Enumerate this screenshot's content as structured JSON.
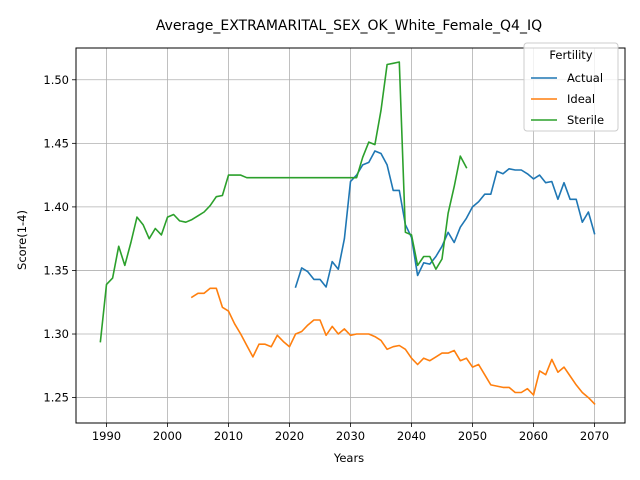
{
  "chart_data": {
    "type": "line",
    "title": "Average_EXTRAMARITAL_SEX_OK_White_Female_Q4_IQ",
    "xlabel": "Years",
    "ylabel": "Score(1-4)",
    "xlim": [
      1985,
      2075
    ],
    "ylim": [
      1.23,
      1.525
    ],
    "grid": true,
    "x_ticks": [
      1990,
      2000,
      2010,
      2020,
      2030,
      2040,
      2050,
      2060,
      2070
    ],
    "y_ticks": [
      1.25,
      1.3,
      1.35,
      1.4,
      1.45,
      1.5
    ],
    "x_tick_labels": [
      "1990",
      "2000",
      "2010",
      "2020",
      "2030",
      "2040",
      "2050",
      "2060",
      "2070"
    ],
    "y_tick_labels": [
      "1.25",
      "1.30",
      "1.35",
      "1.40",
      "1.45",
      "1.50"
    ],
    "legend": {
      "title": "Fertility",
      "position": "top-right"
    },
    "series": [
      {
        "name": "Actual",
        "color": "#1f77b4",
        "x": [
          2021,
          2022,
          2023,
          2024,
          2025,
          2026,
          2027,
          2028,
          2029,
          2030,
          2031,
          2032,
          2033,
          2034,
          2035,
          2036,
          2037,
          2038,
          2039,
          2040,
          2041,
          2042,
          2043,
          2044,
          2045,
          2046,
          2047,
          2048,
          2049,
          2050,
          2051,
          2052,
          2053,
          2054,
          2055,
          2056,
          2057,
          2058,
          2059,
          2060,
          2061,
          2062,
          2063,
          2064,
          2065,
          2066,
          2067,
          2068,
          2069,
          2070
        ],
        "y": [
          1.337,
          1.352,
          1.349,
          1.343,
          1.343,
          1.337,
          1.357,
          1.351,
          1.375,
          1.42,
          1.425,
          1.433,
          1.435,
          1.444,
          1.442,
          1.433,
          1.413,
          1.413,
          1.386,
          1.376,
          1.346,
          1.356,
          1.355,
          1.361,
          1.369,
          1.38,
          1.372,
          1.384,
          1.391,
          1.4,
          1.404,
          1.41,
          1.41,
          1.428,
          1.426,
          1.43,
          1.429,
          1.429,
          1.426,
          1.422,
          1.425,
          1.419,
          1.42,
          1.406,
          1.419,
          1.406,
          1.406,
          1.388,
          1.396,
          1.379
        ]
      },
      {
        "name": "Ideal",
        "color": "#ff7f0e",
        "x": [
          2004,
          2005,
          2006,
          2007,
          2008,
          2009,
          2010,
          2011,
          2012,
          2013,
          2014,
          2015,
          2016,
          2017,
          2018,
          2019,
          2020,
          2021,
          2022,
          2023,
          2024,
          2025,
          2026,
          2027,
          2028,
          2029,
          2030,
          2031,
          2032,
          2033,
          2034,
          2035,
          2036,
          2037,
          2038,
          2039,
          2040,
          2041,
          2042,
          2043,
          2044,
          2045,
          2046,
          2047,
          2048,
          2049,
          2050,
          2051,
          2052,
          2053,
          2054,
          2055,
          2056,
          2057,
          2058,
          2059,
          2060,
          2061,
          2062,
          2063,
          2064,
          2065,
          2066,
          2067,
          2068,
          2069,
          2070
        ],
        "y": [
          1.329,
          1.332,
          1.332,
          1.336,
          1.336,
          1.321,
          1.318,
          1.308,
          1.3,
          1.291,
          1.282,
          1.292,
          1.292,
          1.29,
          1.299,
          1.294,
          1.29,
          1.3,
          1.302,
          1.307,
          1.311,
          1.311,
          1.299,
          1.306,
          1.3,
          1.304,
          1.299,
          1.3,
          1.3,
          1.3,
          1.298,
          1.295,
          1.288,
          1.29,
          1.291,
          1.288,
          1.281,
          1.276,
          1.281,
          1.279,
          1.282,
          1.285,
          1.285,
          1.287,
          1.279,
          1.281,
          1.274,
          1.276,
          1.268,
          1.26,
          1.259,
          1.258,
          1.258,
          1.254,
          1.254,
          1.257,
          1.252,
          1.271,
          1.268,
          1.28,
          1.27,
          1.274,
          1.267,
          1.26,
          1.254,
          1.25,
          1.245
        ]
      },
      {
        "name": "Sterile",
        "color": "#2ca02c",
        "x": [
          1989,
          1990,
          1991,
          1992,
          1993,
          1994,
          1995,
          1996,
          1997,
          1998,
          1999,
          2000,
          2001,
          2002,
          2003,
          2004,
          2005,
          2006,
          2007,
          2008,
          2009,
          2010,
          2011,
          2012,
          2013,
          2014,
          2015,
          2016,
          2017,
          2018,
          2019,
          2020,
          2021,
          2022,
          2023,
          2024,
          2025,
          2026,
          2027,
          2028,
          2029,
          2030,
          2031,
          2032,
          2033,
          2034,
          2035,
          2036,
          2037,
          2038,
          2039,
          2040,
          2041,
          2042,
          2043,
          2044,
          2045,
          2046,
          2047,
          2048,
          2049
        ],
        "y": [
          1.294,
          1.339,
          1.344,
          1.369,
          1.354,
          1.372,
          1.392,
          1.386,
          1.375,
          1.383,
          1.378,
          1.392,
          1.394,
          1.389,
          1.388,
          1.39,
          1.393,
          1.396,
          1.401,
          1.408,
          1.409,
          1.425,
          1.425,
          1.425,
          1.423,
          1.423,
          1.423,
          1.423,
          1.423,
          1.423,
          1.423,
          1.423,
          1.423,
          1.423,
          1.423,
          1.423,
          1.423,
          1.423,
          1.423,
          1.423,
          1.423,
          1.423,
          1.423,
          1.439,
          1.451,
          1.449,
          1.476,
          1.512,
          1.513,
          1.514,
          1.38,
          1.378,
          1.354,
          1.361,
          1.361,
          1.351,
          1.359,
          1.395,
          1.416,
          1.44,
          1.431
        ]
      }
    ]
  }
}
